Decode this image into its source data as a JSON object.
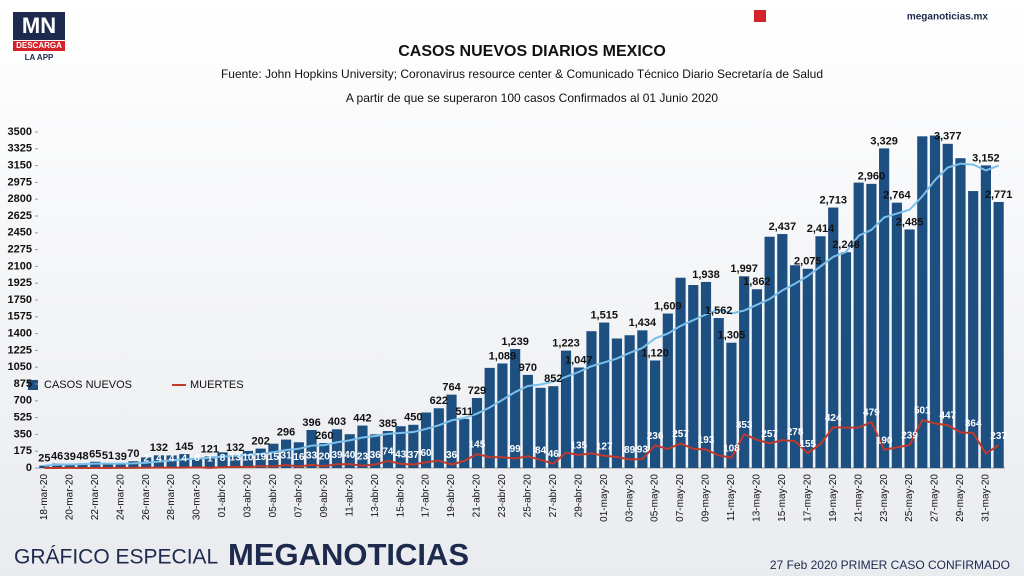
{
  "branding": {
    "logo": "MN",
    "logo_sub": "DESCARGA",
    "logo_app": "LA APP",
    "site": "meganoticias.mx",
    "footer_left": "GRÁFICO ESPECIAL",
    "footer_brand": "MEGANOTICIAS",
    "footer_right": "27 Feb 2020 PRIMER CASO CONFIRMADO"
  },
  "chart_data": {
    "type": "bar",
    "title": "CASOS NUEVOS DIARIOS MEXICO",
    "subtitle": "Fuente: John Hopkins University; Coronavirus resource center & Comunicado Técnico Diario Secretaría de Salud",
    "subtitle2": "A partir de que se superaron 100 casos Confirmados al 01 Junio 2020",
    "categories": [
      "18-mar-20",
      null,
      "20-mar-20",
      null,
      "22-mar-20",
      null,
      "24-mar-20",
      null,
      "26-mar-20",
      null,
      "28-mar-20",
      null,
      "30-mar-20",
      null,
      "01-abr-20",
      null,
      "03-abr-20",
      null,
      "05-abr-20",
      null,
      "07-abr-20",
      null,
      "09-abr-20",
      null,
      "11-abr-20",
      null,
      "13-abr-20",
      null,
      "15-abr-20",
      null,
      "17-abr-20",
      null,
      "19-abr-20",
      null,
      "21-abr-20",
      null,
      "23-abr-20",
      null,
      "25-abr-20",
      null,
      "27-abr-20",
      null,
      "29-abr-20",
      null,
      "01-may-20",
      null,
      "03-may-20",
      null,
      "05-may-20",
      null,
      "07-may-20",
      null,
      "09-may-20",
      null,
      "11-may-20",
      null,
      "13-may-20",
      null,
      "15-may-20",
      null,
      "17-may-20",
      null,
      "19-may-20",
      null,
      "21-may-20",
      null,
      "23-may-20",
      null,
      "25-may-20",
      null,
      "27-may-20",
      null,
      "29-may-20",
      null,
      "31-may-20",
      null
    ],
    "series": [
      {
        "name": "CASOS NUEVOS",
        "color": "#1d4f80",
        "kind": "bar",
        "values": [
          25,
          46,
          39,
          48,
          65,
          51,
          39,
          70,
          110,
          132,
          131,
          145,
          100,
          121,
          163,
          132,
          178,
          202,
          253,
          296,
          268,
          396,
          260,
          403,
          352,
          442,
          351,
          385,
          435,
          450,
          578,
          622,
          764,
          511,
          729,
          1043,
          1089,
          1239,
          970,
          835,
          852,
          1223,
          1047,
          1425,
          1515,
          1349,
          1383,
          1434,
          1120,
          1609,
          1982,
          1906,
          1938,
          1562,
          1305,
          1997,
          1862,
          2409,
          2437,
          2112,
          2075,
          2414,
          2713,
          2248,
          2973,
          2960,
          3329,
          2764,
          2485,
          3455,
          3463,
          3377,
          3227,
          2885,
          3152,
          2771
        ],
        "value_labels": [
          "25",
          "46",
          "39",
          "48",
          "65",
          "51",
          "39",
          "70",
          null,
          "132",
          null,
          "145",
          null,
          "121",
          null,
          "132",
          null,
          "202",
          null,
          "296",
          null,
          "396",
          "260",
          "403",
          null,
          "442",
          null,
          "385",
          null,
          "450",
          null,
          "622",
          "764",
          "511",
          "729",
          null,
          "1,089",
          "1,239",
          "970",
          null,
          "852",
          "1,223",
          "1,047",
          null,
          "1,515",
          null,
          null,
          "1,434",
          "1,120",
          "1,609",
          null,
          null,
          "1,938",
          "1,562",
          "1,305",
          "1,997",
          "1,862",
          null,
          "2,437",
          null,
          "2,075",
          "2,414",
          "2,713",
          "2,248",
          null,
          "2,960",
          "3,329",
          "2,764",
          "2,485",
          null,
          null,
          "3,377",
          null,
          null,
          "3,152",
          "2,771"
        ]
      },
      {
        "name": "MUERTES",
        "color": "#c0392b",
        "kind": "line",
        "values": [
          0,
          0,
          1,
          0,
          1,
          0,
          2,
          1,
          2,
          4,
          4,
          4,
          8,
          1,
          8,
          13,
          10,
          19,
          15,
          31,
          16,
          33,
          20,
          39,
          40,
          23,
          36,
          74,
          43,
          37,
          60,
          77,
          36,
          74,
          145,
          113,
          112,
          99,
          122,
          84,
          46,
          160,
          135,
          152,
          127,
          115,
          89,
          93,
          236,
          197,
          257,
          199,
          193,
          131,
          108,
          353,
          294,
          257,
          290,
          278,
          155,
          250,
          424,
          420,
          420,
          479,
          190,
          215,
          239,
          501,
          463,
          447,
          371,
          364,
          151,
          237
        ],
        "value_labels": [
          null,
          null,
          null,
          null,
          null,
          null,
          null,
          null,
          "2",
          "4",
          "4",
          "4",
          "8",
          "1",
          "8",
          "13",
          "10",
          "19",
          "15",
          "31",
          "16",
          "33",
          "20",
          "39",
          "40",
          "23",
          "36",
          "74",
          "43",
          "37",
          "60",
          null,
          "36",
          null,
          "145",
          null,
          null,
          "99",
          null,
          "84",
          "46",
          null,
          "135",
          null,
          "127",
          null,
          "89",
          "93",
          "236",
          null,
          "257",
          null,
          "193",
          null,
          "108",
          "353",
          null,
          "257",
          null,
          "278",
          "155",
          null,
          "424",
          null,
          null,
          "479",
          "190",
          null,
          "239",
          "501",
          null,
          "447",
          null,
          "364",
          null,
          "237"
        ]
      },
      {
        "color": "#7cc0ea",
        "kind": "line",
        "values": [
          25,
          35,
          37,
          40,
          45,
          46,
          45,
          48,
          55,
          67,
          80,
          90,
          97,
          107,
          119,
          128,
          136,
          146,
          164,
          187,
          200,
          233,
          238,
          268,
          288,
          318,
          333,
          356,
          365,
          375,
          407,
          445,
          496,
          521,
          566,
          630,
          710,
          791,
          854,
          870,
          900,
          950,
          1000,
          1060,
          1100,
          1140,
          1200,
          1250,
          1350,
          1400,
          1480,
          1540,
          1600,
          1650,
          1610,
          1640,
          1700,
          1760,
          1850,
          1920,
          2000,
          2100,
          2200,
          2250,
          2420,
          2480,
          2610,
          2650,
          2690,
          2830,
          3000,
          3130,
          3170,
          3160,
          3100,
          3150
        ]
      }
    ],
    "ylim": [
      0,
      3500
    ],
    "yticks": [
      0,
      175,
      350,
      525,
      700,
      875,
      1050,
      1225,
      1400,
      1575,
      1750,
      1925,
      2100,
      2275,
      2450,
      2625,
      2800,
      2975,
      3150,
      3325,
      3500
    ],
    "grid": false,
    "legend": "left"
  }
}
